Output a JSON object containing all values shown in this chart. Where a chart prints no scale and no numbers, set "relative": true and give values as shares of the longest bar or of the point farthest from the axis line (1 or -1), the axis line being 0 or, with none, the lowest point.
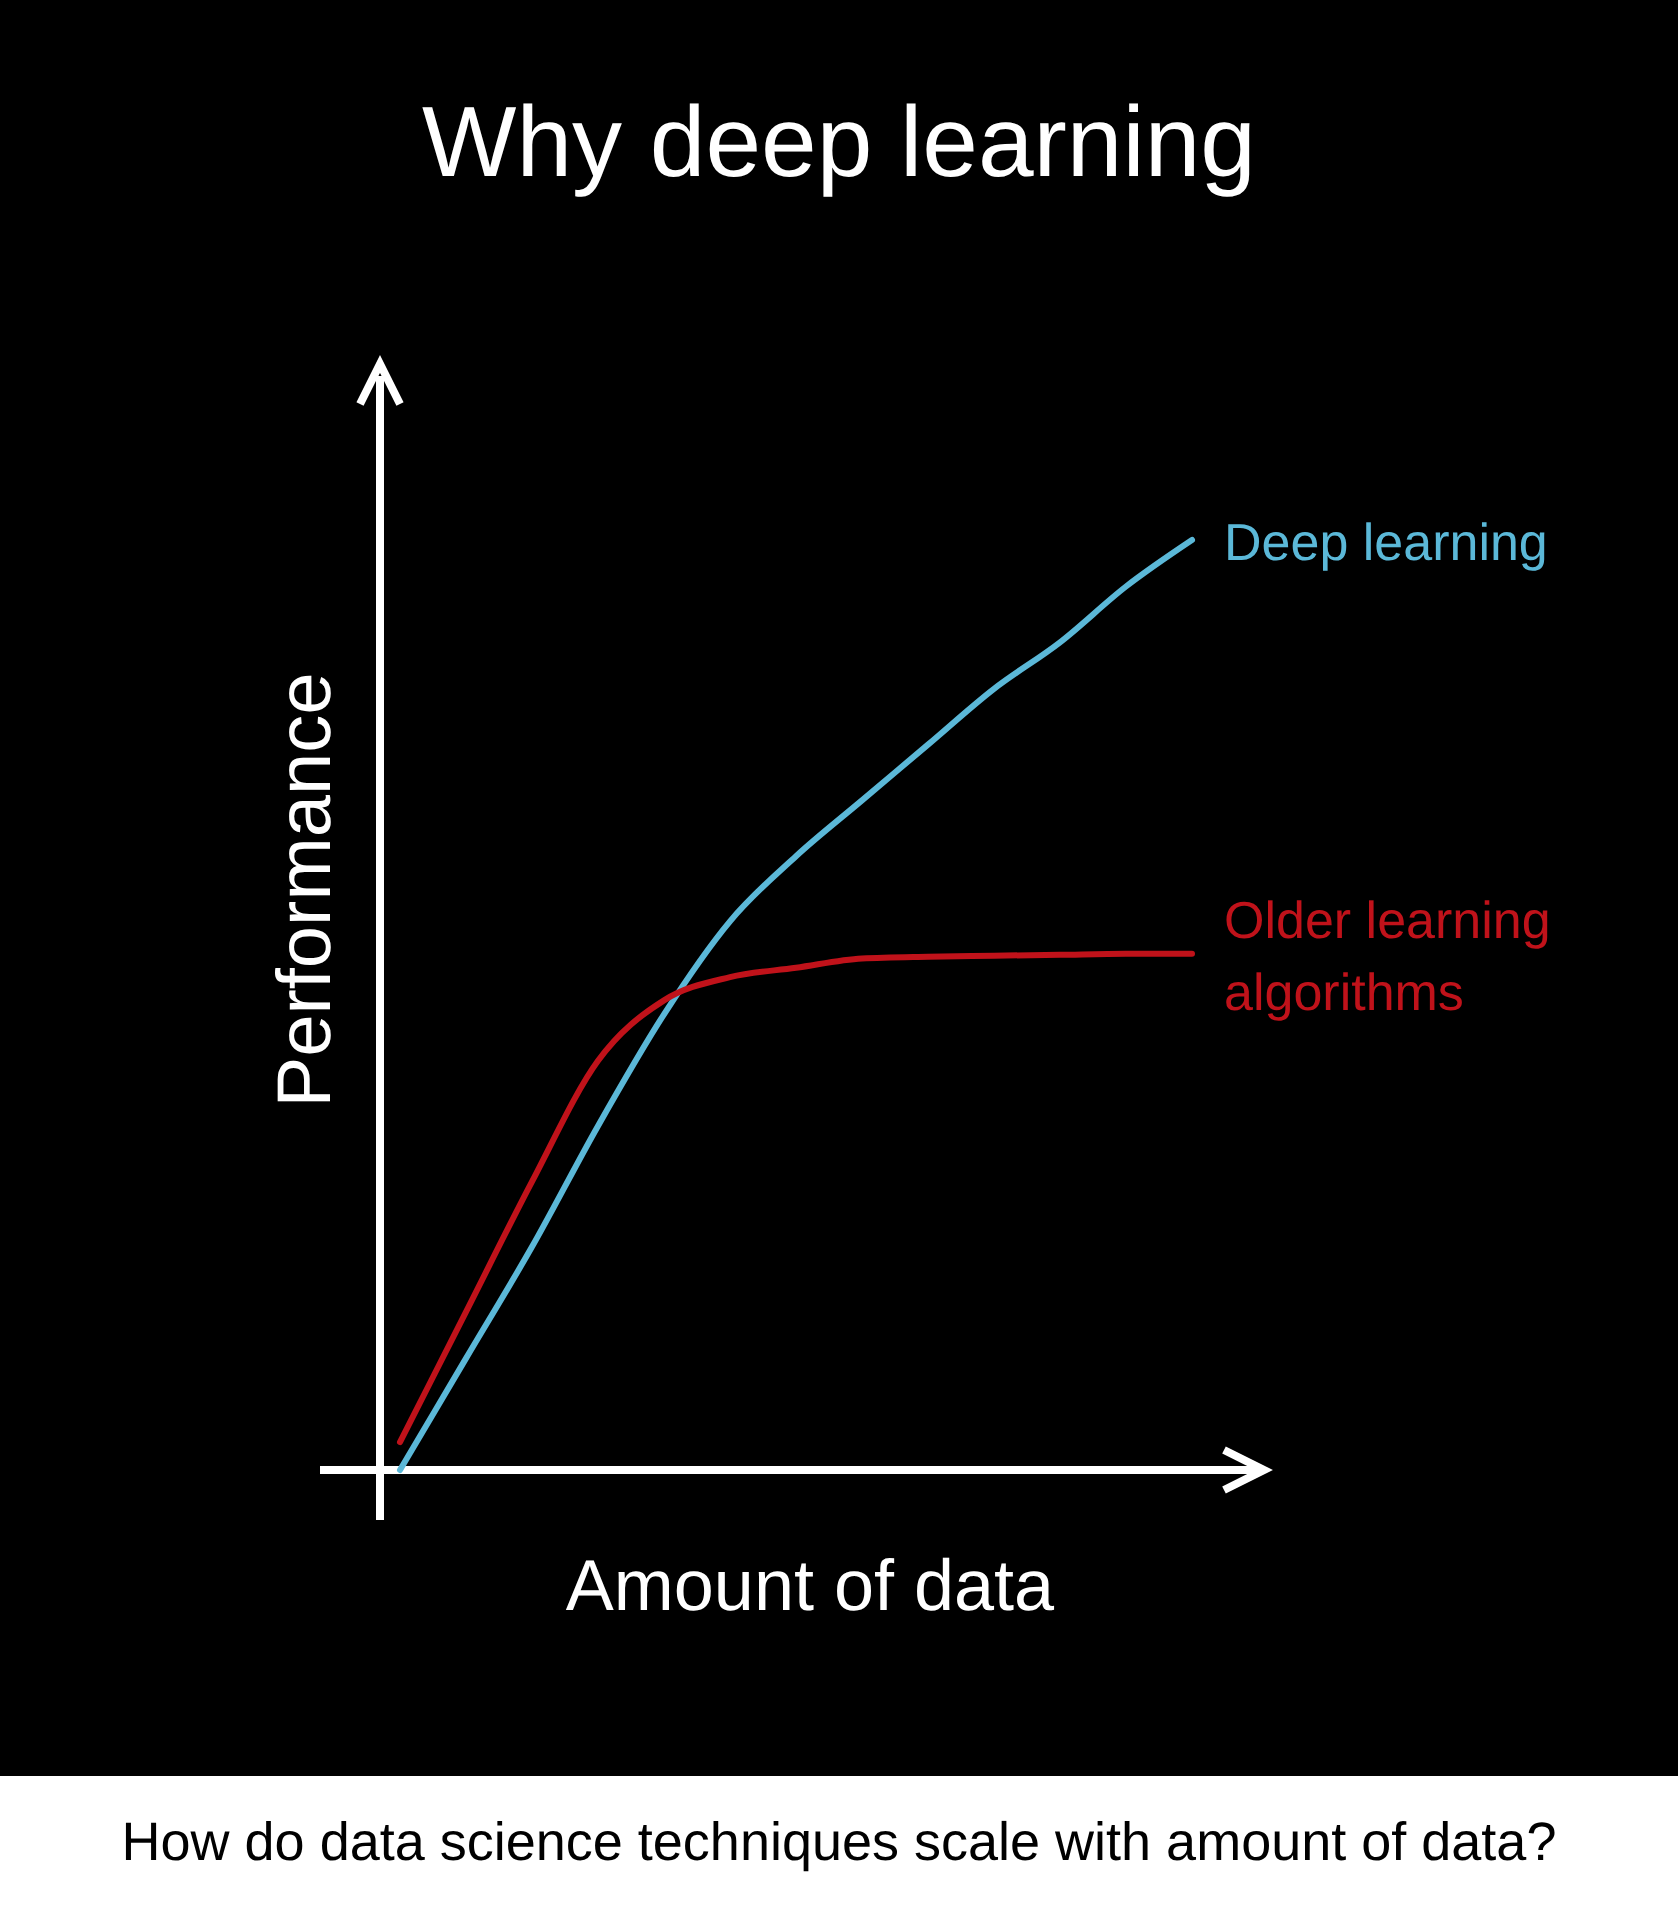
{
  "chart_data": {
    "type": "line",
    "title": "Why deep learning",
    "xlabel": "Amount of data",
    "ylabel": "Performance",
    "relative": true,
    "annotations": [
      "How do data science techniques scale with amount of data?"
    ],
    "categories": [
      null,
      null,
      null,
      null,
      null,
      null,
      null,
      null,
      null,
      null,
      null,
      null,
      null
    ],
    "series": [
      {
        "name": "Deep learning",
        "color": "#5bb8d8",
        "values": [
          0.0,
          0.12,
          0.24,
          0.37,
          0.49,
          0.59,
          0.66,
          0.72,
          0.78,
          0.84,
          0.89,
          0.95,
          1.0
        ]
      },
      {
        "name": "Older learning algorithms",
        "color": "#c0121a",
        "values": [
          0.03,
          0.17,
          0.31,
          0.44,
          0.505,
          0.53,
          0.54,
          0.55,
          0.552,
          0.553,
          0.554,
          0.555,
          0.555
        ]
      }
    ]
  }
}
